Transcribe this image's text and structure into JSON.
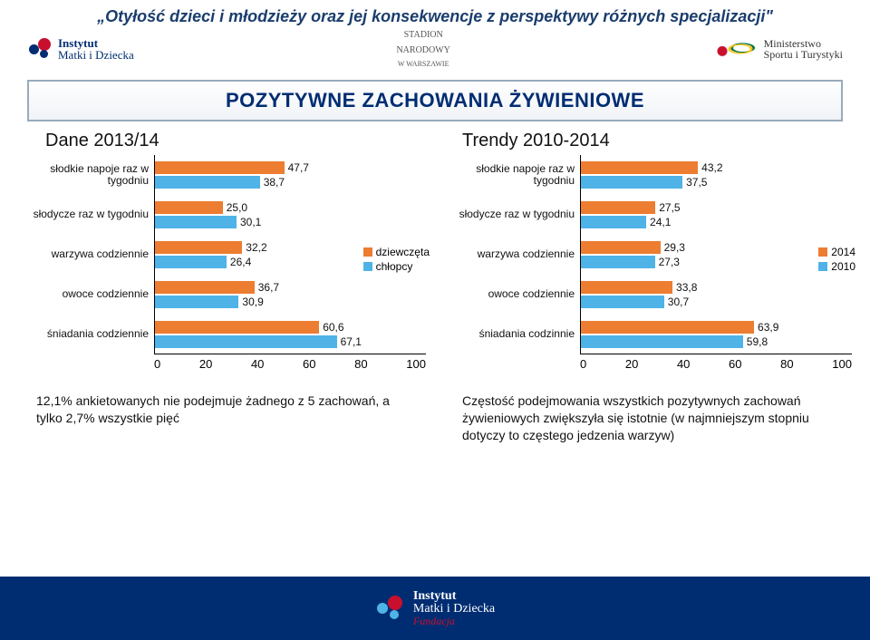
{
  "page": {
    "title": "„Otyłość dzieci i młodzieży oraz jej konsekwencje z perspektywy różnych specjalizacji\"",
    "banner": "POZYTYWNE ZACHOWANIA ŻYWIENIOWE",
    "left_subtitle": "Dane 2013/14",
    "right_subtitle": "Trendy 2010-2014"
  },
  "logos": {
    "left_line1": "Instytut",
    "left_line2": "Matki i Dziecka",
    "mid_line1": "STADION",
    "mid_line2": "NARODOWY",
    "mid_line3": "W WARSZAWIE",
    "right_line1": "Ministerstwo",
    "right_line2": "Sportu i Turystyki"
  },
  "chart_left": {
    "type": "bar",
    "xmax": 100,
    "categories": [
      "słodkie napoje raz w tygodniu",
      "słodycze raz w tygodniu",
      "warzywa codziennie",
      "owoce codziennie",
      "śniadania codziennie"
    ],
    "series": [
      {
        "name": "dziewczęta",
        "color": "#ed7d31",
        "values": [
          47.7,
          25.0,
          32.2,
          36.7,
          60.6
        ],
        "labels": [
          "47,7",
          "25,0",
          "32,2",
          "36,7",
          "60,6"
        ]
      },
      {
        "name": "chłopcy",
        "color": "#4fb3e8",
        "values": [
          38.7,
          30.1,
          26.4,
          30.9,
          67.1
        ],
        "labels": [
          "38,7",
          "30,1",
          "26,4",
          "30,9",
          "67,1"
        ]
      }
    ],
    "xticks": [
      "0",
      "20",
      "40",
      "60",
      "80",
      "100"
    ],
    "label_fontsize": 12,
    "background": "#ffffff"
  },
  "chart_right": {
    "type": "bar",
    "xmax": 100,
    "categories": [
      "słodkie napoje raz w tygodniu",
      "słodycze raz w tygodniu",
      "warzywa codziennie",
      "owoce codziennie",
      "śniadania codzinnie"
    ],
    "series": [
      {
        "name": "2014",
        "color": "#ed7d31",
        "values": [
          43.2,
          27.5,
          29.3,
          33.8,
          63.9
        ],
        "labels": [
          "43,2",
          "27,5",
          "29,3",
          "33,8",
          "63,9"
        ]
      },
      {
        "name": "2010",
        "color": "#4fb3e8",
        "values": [
          37.5,
          24.1,
          27.3,
          30.7,
          59.8
        ],
        "labels": [
          "37,5",
          "24,1",
          "27,3",
          "30,7",
          "59,8"
        ]
      }
    ],
    "xticks": [
      "0",
      "20",
      "40",
      "60",
      "80",
      "100"
    ],
    "label_fontsize": 12,
    "background": "#ffffff"
  },
  "notes": {
    "left": "12,1% ankietowanych nie podejmuje żadnego z 5 zachowań, a tylko 2,7% wszystkie pięć",
    "right": "Częstość podejmowania wszystkich pozytywnych zachowań żywieniowych  zwiększyła się istotnie (w najmniejszym stopniu dotyczy to częstego jedzenia warzyw)"
  },
  "footer": {
    "line1": "Instytut",
    "line2": "Matki i Dziecka",
    "line3": "Fundacja"
  }
}
